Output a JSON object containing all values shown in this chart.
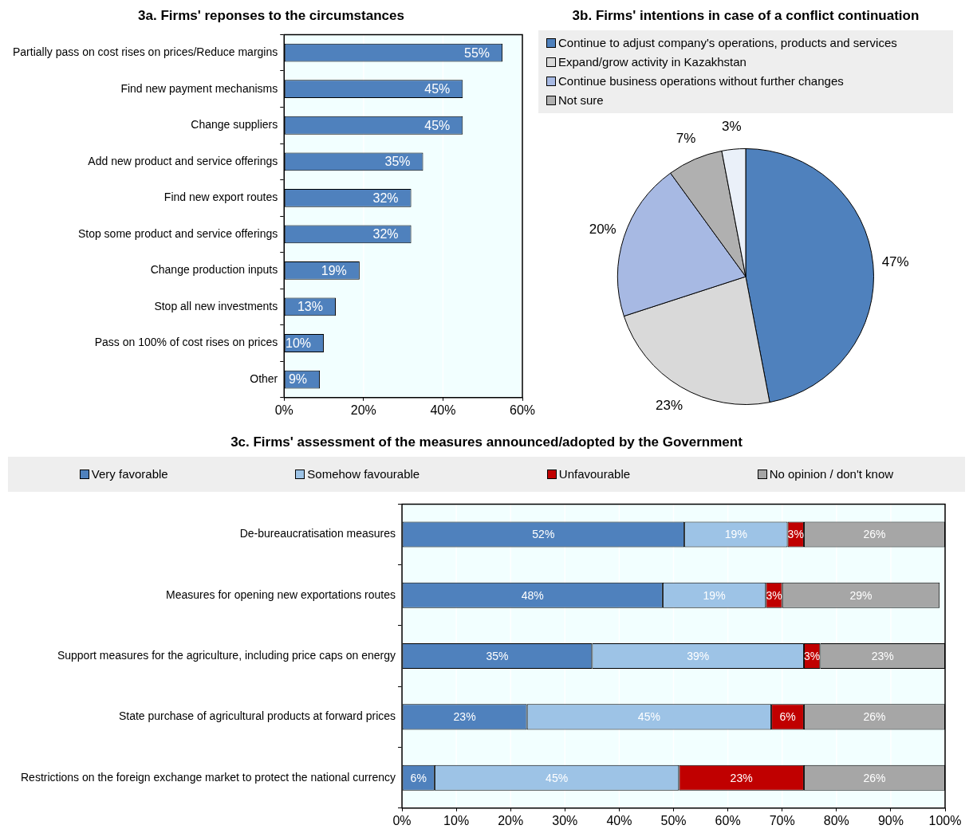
{
  "chart_data": [
    {
      "type": "bar",
      "title": "3a. Firms' reponses to the circumstances",
      "orientation": "horizontal",
      "categories": [
        "Partially pass on cost rises on prices/Reduce margins",
        "Find new payment mechanisms",
        "Change suppliers",
        "Add new product and service offerings",
        "Find new export routes",
        "Stop some product and service offerings",
        "Change production inputs",
        "Stop all new investments",
        "Pass on 100% of cost rises on prices",
        "Other"
      ],
      "values": [
        55,
        45,
        45,
        35,
        32,
        32,
        19,
        13,
        10,
        9
      ],
      "value_labels": [
        "55%",
        "45%",
        "45%",
        "35%",
        "32%",
        "32%",
        "19%",
        "13%",
        "10%",
        "9%"
      ],
      "color": "#4f81bd",
      "xlim": [
        0,
        60
      ],
      "xticks": [
        {
          "value": 0,
          "label": "0%"
        },
        {
          "value": 20,
          "label": "20%"
        },
        {
          "value": 40,
          "label": "40%"
        },
        {
          "value": 60,
          "label": "60%"
        }
      ],
      "grid": "x",
      "legend": false
    },
    {
      "type": "pie",
      "title": "3b. Firms' intentions in case of a conflict continuation",
      "categories": [
        "Continue to adjust company's operations, products and services",
        "Expand/grow activity in Kazakhstan",
        "Continue business operations without further changes",
        "Not sure",
        null
      ],
      "values": [
        47,
        23,
        20,
        7,
        3
      ],
      "value_labels": [
        "47%",
        "23%",
        "20%",
        "7%",
        "3%"
      ],
      "colors": [
        "#4f81bd",
        "#d9d9d9",
        "#a7b9e3",
        "#b0b0b0",
        "#eaf0f9"
      ],
      "legend": "top"
    },
    {
      "type": "bar",
      "title": "3c. Firms' assessment of the measures announced/adopted by the Government",
      "orientation": "horizontal",
      "stacked": true,
      "categories": [
        "De-bureaucratisation measures",
        "Measures for opening new exportations routes",
        "Support measures for the agriculture, including price caps on energy",
        "State purchase of agricultural products at forward prices",
        "Restrictions on the foreign exchange market to protect the national currency"
      ],
      "series": [
        {
          "name": "Very favorable",
          "color": "#4f81bd",
          "values": [
            52,
            48,
            35,
            23,
            6
          ],
          "value_labels": [
            "52%",
            "48%",
            "35%",
            "23%",
            "6%"
          ]
        },
        {
          "name": "Somehow favourable",
          "color": "#9dc3e6",
          "values": [
            19,
            19,
            39,
            45,
            45
          ],
          "value_labels": [
            "19%",
            "19%",
            "39%",
            "45%",
            "45%"
          ]
        },
        {
          "name": "Unfavourable",
          "color": "#c00000",
          "values": [
            3,
            3,
            3,
            6,
            23
          ],
          "value_labels": [
            "3%",
            "3%",
            "3%",
            "6%",
            "23%"
          ]
        },
        {
          "name": "No opinion / don't know",
          "color": "#a6a6a6",
          "values": [
            26,
            29,
            23,
            26,
            26
          ],
          "value_labels": [
            "26%",
            "29%",
            "23%",
            "26%",
            "26%"
          ]
        }
      ],
      "xlim": [
        0,
        100
      ],
      "xticks": [
        {
          "value": 0,
          "label": "0%"
        },
        {
          "value": 10,
          "label": "10%"
        },
        {
          "value": 20,
          "label": "20%"
        },
        {
          "value": 30,
          "label": "30%"
        },
        {
          "value": 40,
          "label": "40%"
        },
        {
          "value": 50,
          "label": "50%"
        },
        {
          "value": 60,
          "label": "60%"
        },
        {
          "value": 70,
          "label": "70%"
        },
        {
          "value": 80,
          "label": "80%"
        },
        {
          "value": 90,
          "label": "90%"
        },
        {
          "value": 100,
          "label": "100%"
        }
      ],
      "grid": "x",
      "legend": "top"
    }
  ]
}
